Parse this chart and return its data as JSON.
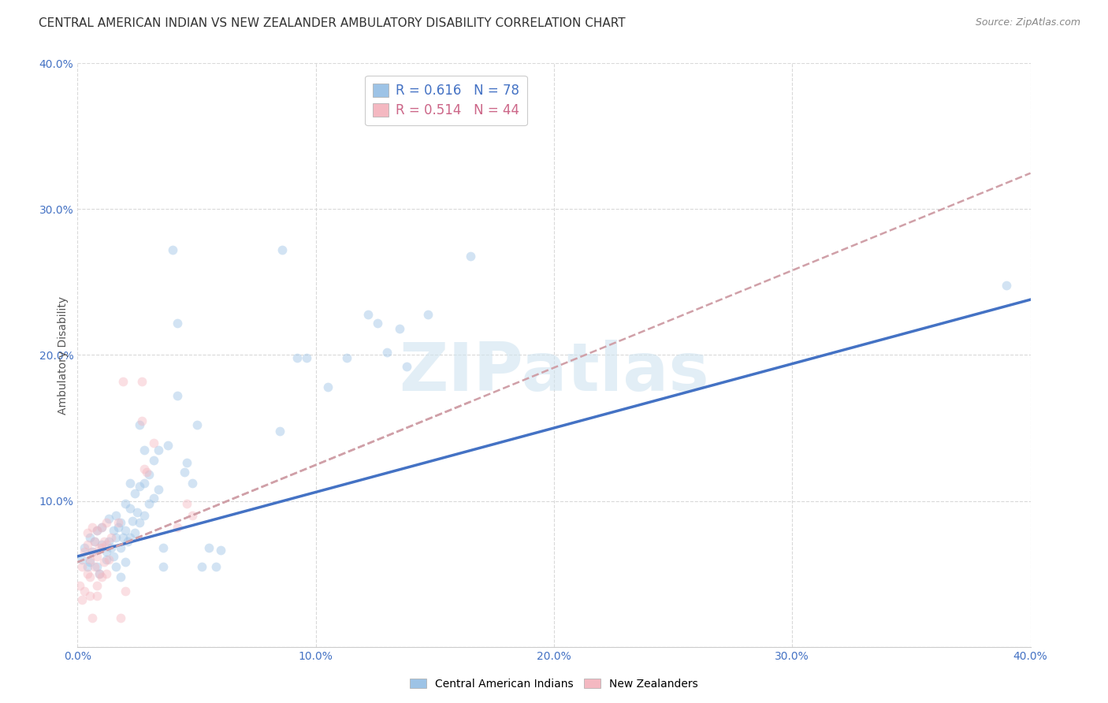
{
  "title": "CENTRAL AMERICAN INDIAN VS NEW ZEALANDER AMBULATORY DISABILITY CORRELATION CHART",
  "source": "Source: ZipAtlas.com",
  "ylabel": "Ambulatory Disability",
  "xlim": [
    0.0,
    0.4
  ],
  "ylim": [
    0.0,
    0.4
  ],
  "xticks": [
    0.0,
    0.1,
    0.2,
    0.3,
    0.4
  ],
  "yticks": [
    0.0,
    0.1,
    0.2,
    0.3,
    0.4
  ],
  "xticklabels": [
    "0.0%",
    "10.0%",
    "20.0%",
    "30.0%",
    "40.0%"
  ],
  "yticklabels": [
    "",
    "10.0%",
    "20.0%",
    "30.0%",
    "40.0%"
  ],
  "legend1_r": "0.616",
  "legend1_n": "78",
  "legend2_r": "0.514",
  "legend2_n": "44",
  "watermark": "ZIPatlas",
  "blue_scatter": [
    [
      0.002,
      0.06
    ],
    [
      0.003,
      0.068
    ],
    [
      0.004,
      0.055
    ],
    [
      0.005,
      0.058
    ],
    [
      0.005,
      0.075
    ],
    [
      0.006,
      0.065
    ],
    [
      0.007,
      0.072
    ],
    [
      0.008,
      0.08
    ],
    [
      0.008,
      0.055
    ],
    [
      0.009,
      0.05
    ],
    [
      0.01,
      0.082
    ],
    [
      0.01,
      0.07
    ],
    [
      0.012,
      0.065
    ],
    [
      0.012,
      0.06
    ],
    [
      0.013,
      0.088
    ],
    [
      0.013,
      0.072
    ],
    [
      0.014,
      0.068
    ],
    [
      0.015,
      0.08
    ],
    [
      0.015,
      0.062
    ],
    [
      0.016,
      0.09
    ],
    [
      0.016,
      0.075
    ],
    [
      0.016,
      0.055
    ],
    [
      0.017,
      0.082
    ],
    [
      0.018,
      0.085
    ],
    [
      0.018,
      0.068
    ],
    [
      0.018,
      0.048
    ],
    [
      0.019,
      0.075
    ],
    [
      0.02,
      0.098
    ],
    [
      0.02,
      0.08
    ],
    [
      0.02,
      0.058
    ],
    [
      0.021,
      0.072
    ],
    [
      0.022,
      0.112
    ],
    [
      0.022,
      0.095
    ],
    [
      0.022,
      0.075
    ],
    [
      0.023,
      0.086
    ],
    [
      0.024,
      0.105
    ],
    [
      0.024,
      0.078
    ],
    [
      0.025,
      0.092
    ],
    [
      0.026,
      0.152
    ],
    [
      0.026,
      0.11
    ],
    [
      0.026,
      0.085
    ],
    [
      0.028,
      0.135
    ],
    [
      0.028,
      0.112
    ],
    [
      0.028,
      0.09
    ],
    [
      0.03,
      0.118
    ],
    [
      0.03,
      0.098
    ],
    [
      0.032,
      0.128
    ],
    [
      0.032,
      0.102
    ],
    [
      0.034,
      0.135
    ],
    [
      0.034,
      0.108
    ],
    [
      0.036,
      0.068
    ],
    [
      0.036,
      0.055
    ],
    [
      0.038,
      0.138
    ],
    [
      0.04,
      0.272
    ],
    [
      0.042,
      0.222
    ],
    [
      0.042,
      0.172
    ],
    [
      0.045,
      0.12
    ],
    [
      0.046,
      0.126
    ],
    [
      0.048,
      0.112
    ],
    [
      0.05,
      0.152
    ],
    [
      0.052,
      0.055
    ],
    [
      0.055,
      0.068
    ],
    [
      0.058,
      0.055
    ],
    [
      0.06,
      0.066
    ],
    [
      0.085,
      0.148
    ],
    [
      0.086,
      0.272
    ],
    [
      0.092,
      0.198
    ],
    [
      0.096,
      0.198
    ],
    [
      0.105,
      0.178
    ],
    [
      0.113,
      0.198
    ],
    [
      0.122,
      0.228
    ],
    [
      0.126,
      0.222
    ],
    [
      0.13,
      0.202
    ],
    [
      0.135,
      0.218
    ],
    [
      0.138,
      0.192
    ],
    [
      0.147,
      0.228
    ],
    [
      0.165,
      0.268
    ],
    [
      0.39,
      0.248
    ]
  ],
  "pink_scatter": [
    [
      0.001,
      0.042
    ],
    [
      0.002,
      0.055
    ],
    [
      0.002,
      0.032
    ],
    [
      0.003,
      0.065
    ],
    [
      0.003,
      0.038
    ],
    [
      0.004,
      0.07
    ],
    [
      0.004,
      0.05
    ],
    [
      0.004,
      0.078
    ],
    [
      0.005,
      0.035
    ],
    [
      0.005,
      0.06
    ],
    [
      0.005,
      0.048
    ],
    [
      0.006,
      0.082
    ],
    [
      0.006,
      0.065
    ],
    [
      0.006,
      0.02
    ],
    [
      0.007,
      0.072
    ],
    [
      0.007,
      0.055
    ],
    [
      0.008,
      0.035
    ],
    [
      0.008,
      0.08
    ],
    [
      0.008,
      0.062
    ],
    [
      0.008,
      0.042
    ],
    [
      0.009,
      0.068
    ],
    [
      0.009,
      0.05
    ],
    [
      0.01,
      0.082
    ],
    [
      0.01,
      0.068
    ],
    [
      0.01,
      0.048
    ],
    [
      0.011,
      0.072
    ],
    [
      0.011,
      0.058
    ],
    [
      0.012,
      0.085
    ],
    [
      0.012,
      0.07
    ],
    [
      0.012,
      0.05
    ],
    [
      0.013,
      0.06
    ],
    [
      0.014,
      0.075
    ],
    [
      0.017,
      0.085
    ],
    [
      0.018,
      0.02
    ],
    [
      0.019,
      0.182
    ],
    [
      0.02,
      0.038
    ],
    [
      0.027,
      0.182
    ],
    [
      0.027,
      0.155
    ],
    [
      0.028,
      0.122
    ],
    [
      0.029,
      0.12
    ],
    [
      0.032,
      0.14
    ],
    [
      0.042,
      0.082
    ],
    [
      0.046,
      0.098
    ],
    [
      0.048,
      0.09
    ]
  ],
  "blue_line_x": [
    0.0,
    0.4
  ],
  "blue_line_y": [
    0.062,
    0.238
  ],
  "pink_line_x": [
    0.0,
    0.165
  ],
  "pink_line_y": [
    0.058,
    0.168
  ],
  "background_color": "#ffffff",
  "grid_color": "#d9d9d9",
  "tick_color": "#4472c4",
  "title_fontsize": 11,
  "axis_label_fontsize": 10,
  "tick_fontsize": 10,
  "scatter_size": 72,
  "scatter_alpha": 0.45,
  "blue_scatter_color": "#9dc3e6",
  "pink_scatter_color": "#f4b8c1",
  "blue_line_color": "#4472c4",
  "pink_line_color": "#d0a0a8",
  "legend1_blue": "#9dc3e6",
  "legend2_pink": "#f4b8c1",
  "legend_r1_color": "#4472c4",
  "legend_n1_color": "#ff0000",
  "legend_r2_color": "#ff6699",
  "legend_n2_color": "#ff0000"
}
